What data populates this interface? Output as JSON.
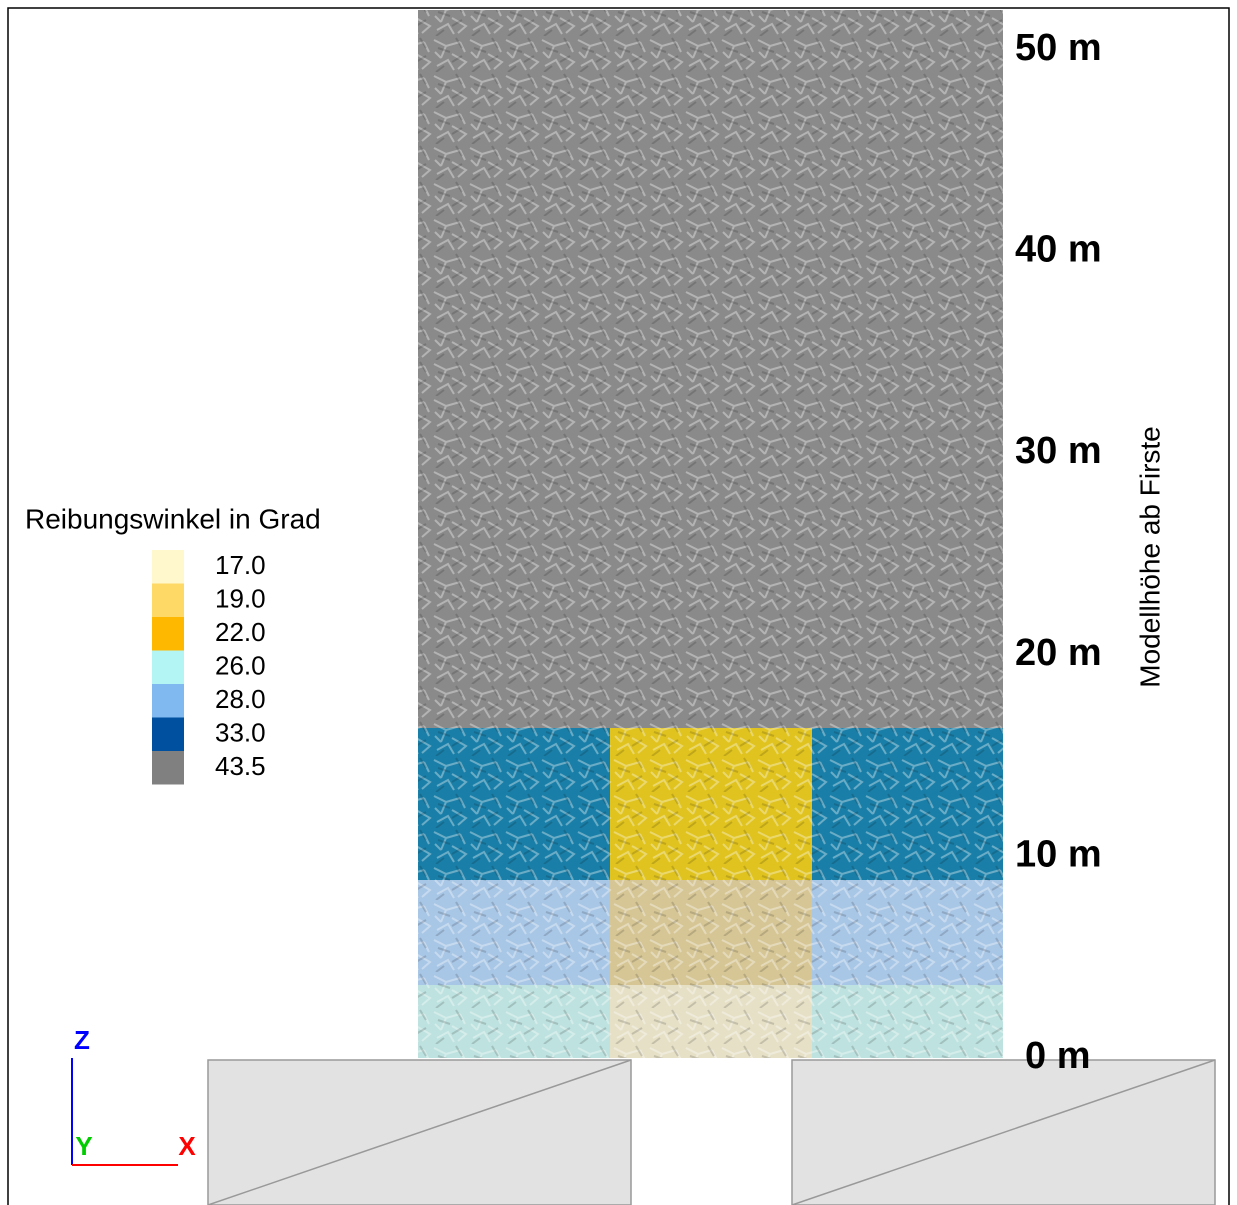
{
  "legend": {
    "title": "Reibungswinkel in Grad",
    "entries": [
      {
        "label": "17.0",
        "color": "#fff8cc"
      },
      {
        "label": "19.0",
        "color": "#ffd966"
      },
      {
        "label": "22.0",
        "color": "#ffb800"
      },
      {
        "label": "26.0",
        "color": "#b3f5f5"
      },
      {
        "label": "28.0",
        "color": "#80b8f0"
      },
      {
        "label": "33.0",
        "color": "#0050a0"
      },
      {
        "label": "43.5",
        "color": "#808080"
      }
    ]
  },
  "height_axis": {
    "title": "Modellhöhe ab Firste",
    "labels": [
      "50 m",
      "40 m",
      "30 m",
      "20 m",
      "10 m",
      "0 m"
    ]
  },
  "coordinate_axes": {
    "z": "Z",
    "y": "Y",
    "x": "X"
  }
}
